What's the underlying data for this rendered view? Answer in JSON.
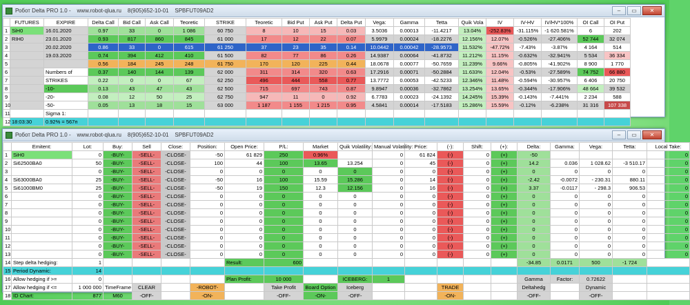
{
  "window1": {
    "title": "Робот Delta PRO 1.0 -    www.robot-qlua.ru    8(905)652-10-01    SPBFUT09AD2",
    "headers": [
      "",
      "FUTURES",
      "EXPIRE",
      "Delta Call",
      "Bid Call",
      "Ask Call",
      "Teoretic",
      "STRIKE",
      "Teoretic",
      "Bid Put",
      "Ask Put",
      "Delta Put",
      "Vega:",
      "Gamma",
      "Tetta",
      "Quik Vola",
      "IV",
      "IV-HV",
      "IV/HV*100%",
      "OI Call",
      "OI Put"
    ],
    "rows": [
      [
        "1",
        "SiH0",
        "16.01.2020",
        "0.97",
        "33",
        "0",
        "1 086",
        "60 750",
        "8",
        "10",
        "15",
        "0.03",
        "3.5036",
        "0.00013",
        "-11.4217",
        "13.04%",
        "-252.83%",
        "-31.115%",
        "-1 620.581%",
        "6",
        "202"
      ],
      [
        "2",
        "RIH0",
        "23.01.2020",
        "0.93",
        "817",
        "860",
        "845",
        "61 000",
        "17",
        "12",
        "22",
        "0.07",
        "5.9979",
        "0.00024",
        "-18.2276",
        "12.156%",
        "12.07%",
        "-0.526%",
        "-27.406%",
        "52 744",
        "32 074"
      ],
      [
        "3",
        "",
        "20.02.2020",
        "0.86",
        "33",
        "0",
        "615",
        "61 250",
        "37",
        "23",
        "35",
        "0.14",
        "10.0442",
        "0.00042",
        "-28.9573",
        "11.532%",
        "-47.72%",
        "-7.43%",
        "-3.87%",
        "4 164",
        "514"
      ],
      [
        "4",
        "",
        "19.03.2020",
        "0.74",
        "394",
        "412",
        "410",
        "61 500",
        "82",
        "77",
        "86",
        "0.26",
        "14.9387",
        "0.00064",
        "-41.8732",
        "11.212%",
        "11.15%",
        "-0.632%",
        "-32.941%",
        "5 534",
        "36 334"
      ],
      [
        "5",
        "",
        "",
        "0.56",
        "184",
        "245",
        "248",
        "61 750",
        "170",
        "120",
        "225",
        "0.44",
        "18.0678",
        "0.00077",
        "-50.7659",
        "11.239%",
        "9.66%",
        "-0.805%",
        "-41.902%",
        "8 900",
        "1 770"
      ],
      [
        "6",
        "",
        "Numbers of",
        "0.37",
        "140",
        "144",
        "139",
        "62 000",
        "311",
        "314",
        "320",
        "0.63",
        "17.2916",
        "0.00071",
        "-50.2884",
        "11.633%",
        "12.04%",
        "-0.53%",
        "-27.589%",
        "74 752",
        "66 880"
      ],
      [
        "7",
        "",
        "STRIKES",
        "0.22",
        "0",
        "0",
        "67",
        "62 250",
        "496",
        "444",
        "558",
        "0.77",
        "13.7772",
        "0.00053",
        "-42.5233",
        "12.346%",
        "11.48%",
        "-0.594%",
        "-30.957%",
        "6 406",
        "20 750"
      ],
      [
        "8",
        "",
        "-10-",
        "0.13",
        "43",
        "47",
        "43",
        "62 500",
        "715",
        "697",
        "743",
        "0.87",
        "9.8947",
        "0.00036",
        "-32.7862",
        "13.254%",
        "13.65%",
        "-0.344%",
        "-17.906%",
        "48 664",
        "39 532"
      ],
      [
        "9",
        "",
        "-20-",
        "0.08",
        "12",
        "50",
        "25",
        "62 750",
        "947",
        "11",
        "0",
        "0.92",
        "6.7783",
        "0.00023",
        "-24.1392",
        "14.245%",
        "15.39%",
        "-0.143%",
        "-7.441%",
        "2 234",
        "588"
      ],
      [
        "10",
        "",
        "-50-",
        "0.05",
        "13",
        "18",
        "15",
        "63 000",
        "1 187",
        "1 155",
        "1 215",
        "0.95",
        "4.5841",
        "0.00014",
        "-17.5183",
        "15.286%",
        "15.59%",
        "-0.12%",
        "-6.238%",
        "31 316",
        "107 338"
      ],
      [
        "11",
        "",
        "Sigma 1:",
        "",
        "",
        "",
        "",
        "",
        "",
        "",
        "",
        "",
        "",
        "",
        "",
        "",
        "",
        "",
        "",
        "",
        ""
      ],
      [
        "12",
        "18:03:30",
        "0.92% = 567п",
        "",
        "",
        "",
        "",
        "",
        "",
        "",
        "",
        "",
        "",
        "",
        "",
        "",
        "",
        "",
        "",
        "",
        ""
      ]
    ]
  },
  "window2": {
    "title": "Робот Delta PRO 1.0 -    www.robot-qlua.ru    8(905)652-10-01    SPBFUT09AD2",
    "headers": [
      "",
      "Emitent:",
      "Lot:",
      "Buy:",
      "Sell",
      "Close:",
      "Position:",
      "Open Price:",
      "P/L:",
      "Market",
      "Quik Volatility:",
      "Manual Volatility:",
      "Price:",
      "(-):",
      "Shift:",
      "(+):",
      "Delta:",
      "Gamma:",
      "Vega:",
      "Tetta:",
      "Local Take:"
    ],
    "rows": [
      [
        "1",
        "SiH0",
        "0",
        "-BUY-",
        "-SELL-",
        "-CLOSE-",
        "-50",
        "61 829",
        "250",
        "0.96%",
        "",
        "0",
        "61 824",
        "(-)",
        "0",
        "(+)",
        "-50",
        "",
        "",
        "",
        "0"
      ],
      [
        "2",
        "Si62500BA0",
        "50",
        "-BUY-",
        "-SELL-",
        "-CLOSE-",
        "100",
        "44",
        "100",
        "13.65",
        "13.254",
        "0",
        "45",
        "(-)",
        "0",
        "(+)",
        "14.2",
        "0.036",
        "1 028.62",
        "-3 510.17",
        "0"
      ],
      [
        "3",
        "",
        "0",
        "-BUY-",
        "-SELL-",
        "-CLOSE-",
        "0",
        "0",
        "0",
        "0",
        "0",
        "0",
        "0",
        "(-)",
        "0",
        "(+)",
        "0",
        "0",
        "0",
        "0",
        "0"
      ],
      [
        "4",
        "Si63000BA0",
        "25",
        "-BUY-",
        "-SELL-",
        "-CLOSE-",
        "-50",
        "16",
        "100",
        "15.59",
        "15.286",
        "0",
        "14",
        "(-)",
        "0",
        "(+)",
        "-2.42",
        "-0.0072",
        "- 230.31",
        "880.11",
        "0"
      ],
      [
        "5",
        "Si61000BM0",
        "25",
        "-BUY-",
        "-SELL-",
        "-CLOSE-",
        "-50",
        "19",
        "150",
        "12.3",
        "12.156",
        "0",
        "16",
        "(-)",
        "0",
        "(+)",
        "3.37",
        "-0.0117",
        "- 298.3",
        "906.53",
        "0"
      ],
      [
        "6",
        "",
        "0",
        "-BUY-",
        "-SELL-",
        "-CLOSE-",
        "0",
        "0",
        "0",
        "0",
        "0",
        "0",
        "0",
        "(-)",
        "0",
        "(+)",
        "0",
        "0",
        "0",
        "0",
        "0"
      ],
      [
        "7",
        "",
        "0",
        "-BUY-",
        "-SELL-",
        "-CLOSE-",
        "0",
        "0",
        "0",
        "0",
        "0",
        "0",
        "0",
        "(-)",
        "0",
        "(+)",
        "0",
        "0",
        "0",
        "0",
        "0"
      ],
      [
        "8",
        "",
        "0",
        "-BUY-",
        "-SELL-",
        "-CLOSE-",
        "0",
        "0",
        "0",
        "0",
        "0",
        "0",
        "0",
        "(-)",
        "0",
        "(+)",
        "0",
        "0",
        "0",
        "0",
        "0"
      ],
      [
        "9",
        "",
        "0",
        "-BUY-",
        "-SELL-",
        "-CLOSE-",
        "0",
        "0",
        "0",
        "0",
        "0",
        "0",
        "0",
        "(-)",
        "0",
        "(+)",
        "0",
        "0",
        "0",
        "0",
        "0"
      ],
      [
        "10",
        "",
        "0",
        "-BUY-",
        "-SELL-",
        "-CLOSE-",
        "0",
        "0",
        "0",
        "0",
        "0",
        "0",
        "0",
        "(-)",
        "0",
        "(+)",
        "0",
        "0",
        "0",
        "0",
        "0"
      ],
      [
        "11",
        "",
        "0",
        "-BUY-",
        "-SELL-",
        "-CLOSE-",
        "0",
        "0",
        "0",
        "0",
        "0",
        "0",
        "0",
        "(-)",
        "0",
        "(+)",
        "0",
        "0",
        "0",
        "0",
        "0"
      ],
      [
        "12",
        "",
        "0",
        "-BUY-",
        "-SELL-",
        "-CLOSE-",
        "0",
        "0",
        "0",
        "0",
        "0",
        "0",
        "0",
        "(-)",
        "0",
        "(+)",
        "0",
        "0",
        "0",
        "0",
        "0"
      ],
      [
        "13",
        "",
        "0",
        "-BUY-",
        "-SELL-",
        "-CLOSE-",
        "0",
        "0",
        "0",
        "0",
        "0",
        "0",
        "0",
        "(-)",
        "0",
        "(+)",
        "0",
        "0",
        "0",
        "0",
        "0"
      ]
    ],
    "footer": {
      "r14": {
        "n": "14",
        "label": "Step delta hedging:",
        "val": "1",
        "result_label": "Result:",
        "result": "600",
        "delta": "-34.85",
        "gamma": "0.0171",
        "vega": "500",
        "tetta": "-1 724"
      },
      "r15": {
        "n": "15",
        "label": "Period Dynamic:",
        "val": "14"
      },
      "r16": {
        "n": "16",
        "label": "Allow hedging if >=",
        "val": "0",
        "plan_label": "Plan Profit:",
        "plan": "10 000",
        "iceberg": "ICEBERG:",
        "iceberg_val": "1",
        "gamma_lbl": "Gamma",
        "factor": "Factor:",
        "factor_val": "0.72622"
      },
      "r17": {
        "n": "17",
        "label": "Allow hedging if <=",
        "val": "1 000 000",
        "tf_label": "TimeFrame",
        "clear": "CLEAR",
        "robot": "-ROBOT-",
        "take": "Take Profit",
        "board": "Board Option",
        "iceberg": "Iceberg",
        "trade": "TRADE",
        "deltahedg": "Deltahedg",
        "dynamic": "Dynamic"
      },
      "r18": {
        "n": "18",
        "label": "ID Chart:",
        "val": "877",
        "tf": "M60",
        "off1": "-OFF-",
        "on1": "-ON-",
        "off2": "-OFF-",
        "on2": "-ON-",
        "off3": "-OFF-",
        "on3": "-ON-",
        "off4": "-OFF-",
        "off5": "-OFF-"
      }
    }
  },
  "colors": {
    "green": "#5cc95a",
    "red": "#ea5959",
    "cyan": "#46d2d8"
  }
}
